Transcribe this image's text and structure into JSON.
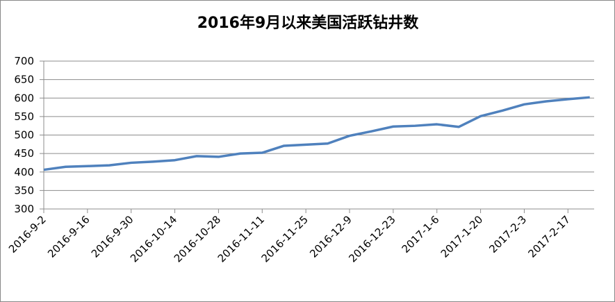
{
  "chart_data": {
    "type": "line",
    "title": "2016年9月以来美国活跃钻井数",
    "categories": [
      "2016-9-2",
      null,
      "2016-9-16",
      null,
      "2016-9-30",
      null,
      "2016-10-14",
      null,
      "2016-10-28",
      null,
      "2016-11-11",
      null,
      "2016-11-25",
      null,
      "2016-12-9",
      null,
      "2016-12-23",
      null,
      "2017-1-6",
      null,
      "2017-1-20",
      null,
      "2017-2-3",
      null,
      "2017-2-17",
      null
    ],
    "series": [
      {
        "name": "活跃钻井数",
        "color": "#4f81bd",
        "values": [
          406,
          414,
          416,
          418,
          425,
          428,
          432,
          443,
          441,
          450,
          452,
          471,
          474,
          477,
          498,
          510,
          523,
          525,
          529,
          522,
          551,
          566,
          583,
          591,
          597,
          602
        ]
      }
    ],
    "ylim": [
      300,
      700
    ],
    "yticks": [
      300,
      350,
      400,
      450,
      500,
      550,
      600,
      650,
      700
    ],
    "grid": true
  }
}
